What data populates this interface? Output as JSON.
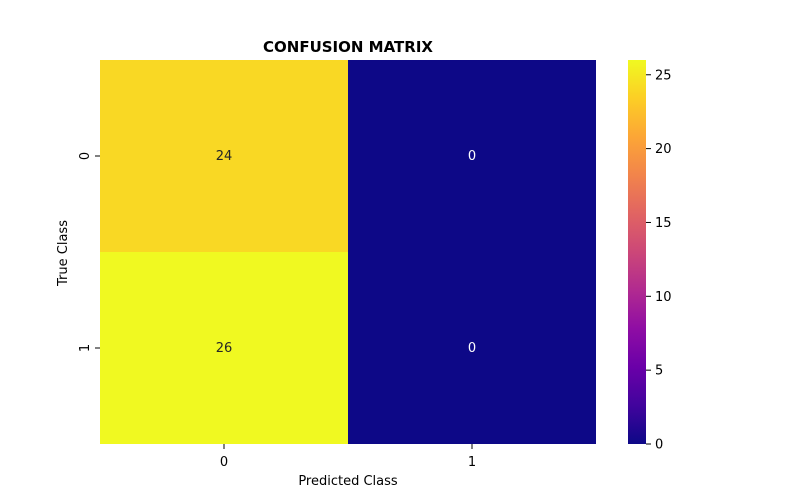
{
  "chart_data": {
    "type": "heatmap",
    "title": "CONFUSION MATRIX",
    "xlabel": "Predicted Class",
    "ylabel": "True Class",
    "x_categories": [
      "0",
      "1"
    ],
    "y_categories": [
      "0",
      "1"
    ],
    "values": [
      [
        24,
        0
      ],
      [
        26,
        0
      ]
    ],
    "colormap": "plasma",
    "vmin": 0,
    "vmax": 26,
    "colorbar_ticks": [
      0,
      5,
      10,
      15,
      20,
      25
    ],
    "grid": false,
    "annotations": true
  }
}
